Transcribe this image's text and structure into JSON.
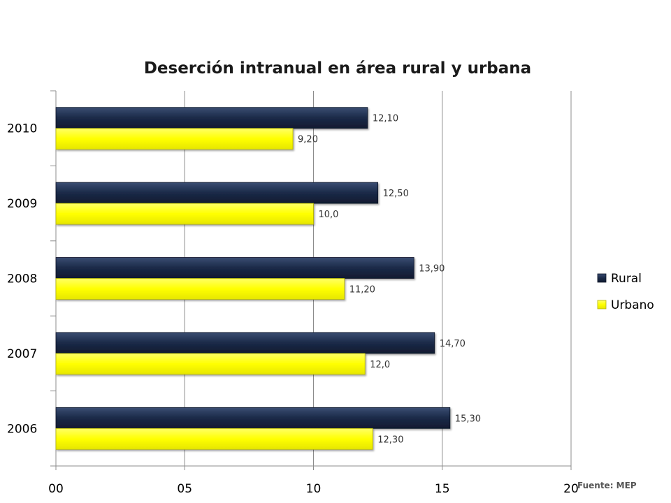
{
  "chart_data": {
    "type": "bar",
    "orientation": "horizontal",
    "title": "Deserción intranual en área rural y urbana",
    "categories": [
      "2010",
      "2009",
      "2008",
      "2007",
      "2006"
    ],
    "series": [
      {
        "name": "Rural",
        "color": "#1b2a48",
        "values": [
          12.1,
          12.5,
          13.9,
          14.7,
          15.3
        ],
        "labels": [
          "12,10",
          "12,50",
          "13,90",
          "14,70",
          "15,30"
        ]
      },
      {
        "name": "Urbano",
        "color": "#ffff00",
        "values": [
          9.2,
          10.0,
          11.2,
          12.0,
          12.3
        ],
        "labels": [
          "9,20",
          "10,0",
          "11,20",
          "12,0",
          "12,30"
        ]
      }
    ],
    "xlim": [
      0,
      20
    ],
    "x_ticks": [
      0,
      5,
      10,
      15,
      20
    ],
    "x_tick_labels": [
      "00",
      "05",
      "10",
      "15",
      "20"
    ],
    "grid": "vertical",
    "legend_position": "right"
  },
  "source_note": "Fuente: MEP"
}
